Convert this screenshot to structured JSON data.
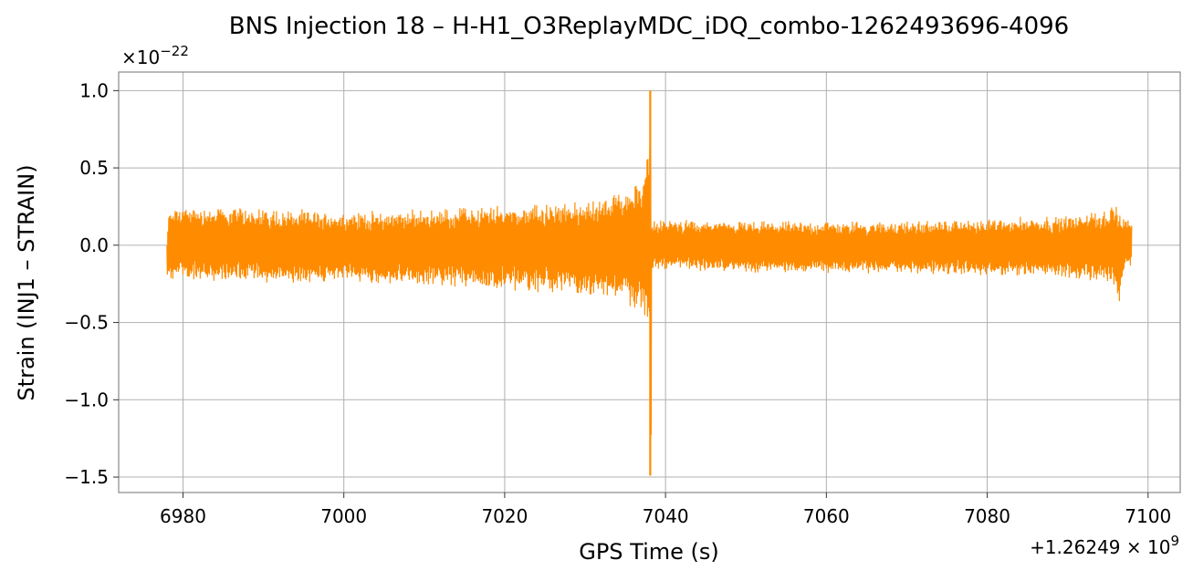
{
  "chart_data": {
    "type": "line",
    "title": "BNS Injection 18 – H-H1_O3ReplayMDC_iDQ_combo-1262493696-4096",
    "xlabel": "GPS Time (s)",
    "ylabel": "Strain (INJ1 – STRAIN)",
    "x_offset_label": "+1.26249×10⁹",
    "x_offset_label_main": "+1.26249",
    "x_offset_label_exp": "9",
    "y_multiplier_label_base": "×10",
    "y_multiplier_label_exp": "−22",
    "xlim": [
      6972,
      7104
    ],
    "ylim": [
      -1.6,
      1.12
    ],
    "x_ticks": [
      6980,
      7000,
      7020,
      7040,
      7060,
      7080,
      7100
    ],
    "x_tick_labels": [
      "6980",
      "7000",
      "7020",
      "7040",
      "7060",
      "7080",
      "7100"
    ],
    "y_ticks": [
      1.0,
      0.5,
      0.0,
      -0.5,
      -1.0,
      -1.5
    ],
    "y_tick_labels": [
      "1.0",
      "0.5",
      "0.0",
      "−0.5",
      "−1.0",
      "−1.5"
    ],
    "grid": true,
    "line_color": "#ff8c00",
    "series": [
      {
        "x": [
          6978,
          6978.3,
          6990,
          7000,
          7010,
          7020,
          7030,
          7034,
          7036,
          7037,
          7037.6,
          7038.0,
          7038.1,
          7038.2,
          7038.3,
          7038.5,
          7040,
          7050,
          7060,
          7070,
          7080,
          7090,
          7095,
          7096,
          7096.3,
          7097,
          7098
        ],
        "y_upper": [
          0.03,
          0.26,
          0.25,
          0.22,
          0.24,
          0.27,
          0.29,
          0.35,
          0.41,
          0.47,
          0.55,
          0.72,
          1.0,
          0.99,
          0.12,
          0.17,
          0.17,
          0.16,
          0.16,
          0.16,
          0.18,
          0.2,
          0.24,
          0.31,
          0.2,
          0.18,
          0.17
        ],
        "y_lower": [
          -0.2,
          -0.23,
          -0.25,
          -0.25,
          -0.27,
          -0.3,
          -0.33,
          -0.38,
          -0.42,
          -0.47,
          -0.5,
          -0.6,
          -1.49,
          -1.43,
          -0.2,
          -0.17,
          -0.16,
          -0.18,
          -0.19,
          -0.19,
          -0.2,
          -0.22,
          -0.26,
          -0.29,
          -0.45,
          -0.17,
          -0.15
        ]
      }
    ]
  }
}
